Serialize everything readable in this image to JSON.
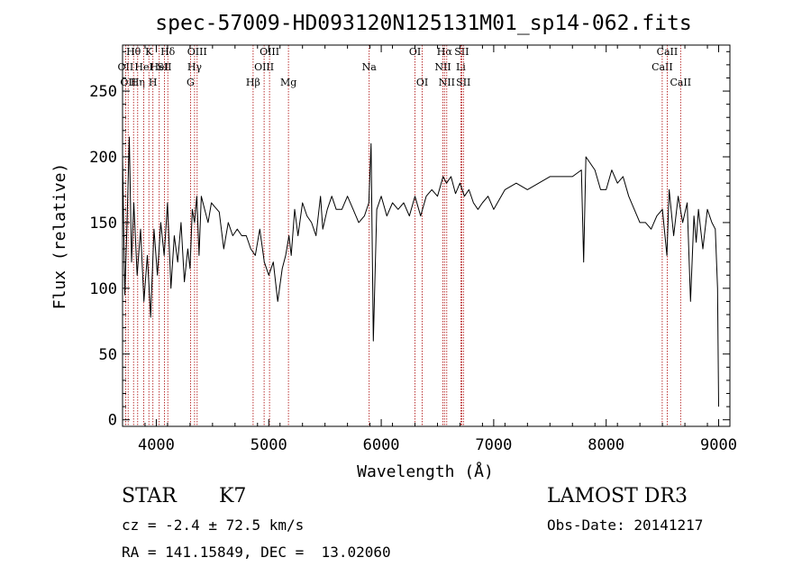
{
  "colors": {
    "line": "#000000",
    "marker": "#aa0000",
    "background": "#ffffff"
  },
  "info": {
    "class_label": "STAR",
    "subclass_label": "K7",
    "survey": "LAMOST DR3",
    "cz": "cz = -2.4 ± 72.5 km/s",
    "obs_date": "Obs-Date: 20141217",
    "coords": "RA = 141.15849, DEC =  13.02060"
  },
  "chart_data": {
    "type": "line",
    "title": "spec-57009-HD093120N125131M01_sp14-062.fits",
    "xlabel": "Wavelength (Å)",
    "ylabel": "Flux (relative)",
    "xlim": [
      3700,
      9100
    ],
    "ylim": [
      -5,
      285
    ],
    "xticks": [
      4000,
      5000,
      6000,
      7000,
      8000,
      9000
    ],
    "yticks": [
      0,
      50,
      100,
      150,
      200,
      250
    ],
    "grid": false,
    "series": [
      {
        "name": "flux",
        "x": [
          3700,
          3720,
          3740,
          3760,
          3780,
          3800,
          3830,
          3860,
          3890,
          3920,
          3950,
          3980,
          4010,
          4040,
          4070,
          4100,
          4130,
          4160,
          4190,
          4220,
          4250,
          4280,
          4300,
          4320,
          4340,
          4360,
          4380,
          4400,
          4430,
          4460,
          4490,
          4520,
          4560,
          4600,
          4640,
          4680,
          4720,
          4760,
          4800,
          4840,
          4880,
          4920,
          4960,
          5000,
          5040,
          5080,
          5120,
          5150,
          5180,
          5200,
          5230,
          5260,
          5300,
          5340,
          5380,
          5420,
          5460,
          5480,
          5520,
          5560,
          5600,
          5650,
          5700,
          5750,
          5800,
          5850,
          5890,
          5910,
          5930,
          5960,
          6000,
          6050,
          6100,
          6150,
          6200,
          6250,
          6300,
          6350,
          6400,
          6450,
          6500,
          6550,
          6580,
          6620,
          6660,
          6700,
          6740,
          6780,
          6820,
          6860,
          6900,
          6950,
          7000,
          7100,
          7200,
          7300,
          7400,
          7500,
          7600,
          7700,
          7780,
          7800,
          7820,
          7900,
          7950,
          8000,
          8050,
          8100,
          8150,
          8200,
          8250,
          8300,
          8350,
          8400,
          8450,
          8500,
          8540,
          8560,
          8600,
          8640,
          8680,
          8720,
          8750,
          8780,
          8800,
          8820,
          8860,
          8900,
          8940,
          8970,
          8990,
          9000
        ],
        "y": [
          200,
          95,
          150,
          215,
          120,
          165,
          110,
          145,
          90,
          125,
          78,
          145,
          110,
          150,
          125,
          165,
          100,
          140,
          120,
          150,
          105,
          130,
          115,
          160,
          150,
          170,
          125,
          170,
          160,
          150,
          165,
          162,
          158,
          130,
          150,
          140,
          145,
          140,
          140,
          130,
          125,
          145,
          120,
          110,
          120,
          90,
          115,
          125,
          140,
          125,
          160,
          140,
          165,
          155,
          150,
          140,
          170,
          145,
          160,
          170,
          160,
          160,
          170,
          160,
          150,
          155,
          165,
          210,
          60,
          160,
          170,
          155,
          165,
          160,
          165,
          155,
          170,
          155,
          170,
          175,
          170,
          185,
          180,
          185,
          172,
          180,
          170,
          175,
          165,
          160,
          165,
          170,
          160,
          175,
          180,
          175,
          180,
          185,
          185,
          185,
          190,
          120,
          200,
          190,
          175,
          175,
          190,
          180,
          185,
          170,
          160,
          150,
          150,
          145,
          155,
          160,
          125,
          175,
          140,
          170,
          150,
          165,
          90,
          155,
          135,
          160,
          130,
          160,
          150,
          145,
          100,
          10
        ]
      }
    ],
    "line_markers": [
      {
        "wl": 3727,
        "label": "OII",
        "row": 2
      },
      {
        "wl": 3750,
        "label": "OII",
        "row": 3
      },
      {
        "wl": 3798,
        "label": "Hθ",
        "row": 1
      },
      {
        "wl": 3835,
        "label": "Hη",
        "row": 3
      },
      {
        "wl": 3889,
        "label": "HeI",
        "row": 2
      },
      {
        "wl": 3934,
        "label": "K",
        "row": 1
      },
      {
        "wl": 3970,
        "label": "H",
        "row": 3
      },
      {
        "wl": 4026,
        "label": "HeI",
        "row": 2
      },
      {
        "wl": 4072,
        "label": "SII",
        "row": 2
      },
      {
        "wl": 4102,
        "label": "Hδ",
        "row": 1
      },
      {
        "wl": 4304,
        "label": "G",
        "row": 3
      },
      {
        "wl": 4340,
        "label": "Hγ",
        "row": 2
      },
      {
        "wl": 4363,
        "label": "OIII",
        "row": 1
      },
      {
        "wl": 4861,
        "label": "Hβ",
        "row": 3
      },
      {
        "wl": 4959,
        "label": "OIII",
        "row": 2
      },
      {
        "wl": 5007,
        "label": "OIII",
        "row": 1
      },
      {
        "wl": 5175,
        "label": "Mg",
        "row": 3
      },
      {
        "wl": 5893,
        "label": "Na",
        "row": 2
      },
      {
        "wl": 6300,
        "label": "OI",
        "row": 1
      },
      {
        "wl": 6364,
        "label": "OI",
        "row": 3
      },
      {
        "wl": 6548,
        "label": "NII",
        "row": 2
      },
      {
        "wl": 6563,
        "label": "Hα",
        "row": 1
      },
      {
        "wl": 6583,
        "label": "NII",
        "row": 3
      },
      {
        "wl": 6708,
        "label": "Li",
        "row": 2
      },
      {
        "wl": 6716,
        "label": "SII",
        "row": 1
      },
      {
        "wl": 6731,
        "label": "SII",
        "row": 3
      },
      {
        "wl": 8498,
        "label": "CaII",
        "row": 2
      },
      {
        "wl": 8542,
        "label": "CaII",
        "row": 1
      },
      {
        "wl": 8662,
        "label": "CaII",
        "row": 3
      }
    ]
  }
}
